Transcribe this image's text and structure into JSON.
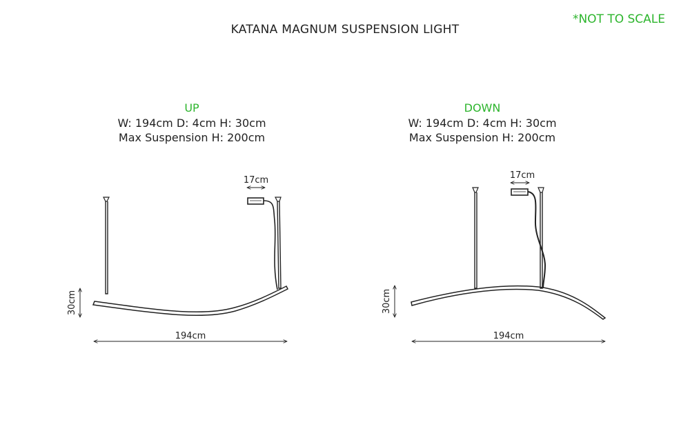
{
  "title": "KATANA MAGNUM SUSPENSION LIGHT",
  "note": "*NOT TO SCALE",
  "colors": {
    "accent": "#2db52d",
    "line": "#222222"
  },
  "views": [
    {
      "label": "UP",
      "spec": "W: 194cm D: 4cm H: 30cm",
      "suspension": "Max Suspension H: 200cm",
      "canopy_dim": "17cm",
      "height_dim": "30cm",
      "width_dim": "194cm"
    },
    {
      "label": "DOWN",
      "spec": "W: 194cm D: 4cm H: 30cm",
      "suspension": "Max Suspension H: 200cm",
      "canopy_dim": "17cm",
      "height_dim": "30cm",
      "width_dim": "194cm"
    }
  ]
}
